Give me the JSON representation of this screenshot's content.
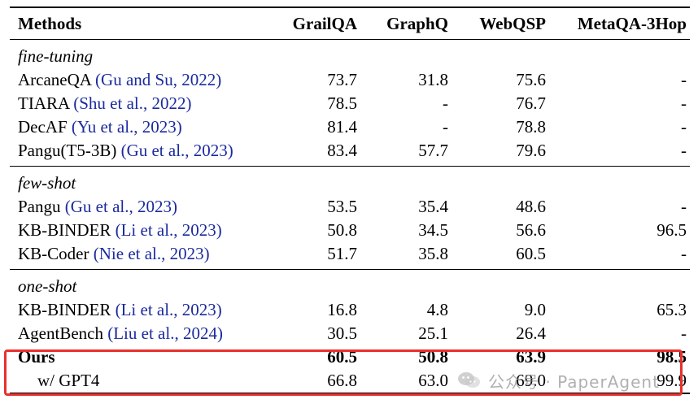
{
  "header": {
    "methods": "Methods",
    "grailqa": "GrailQA",
    "graphq": "GraphQ",
    "webqsp": "WebQSP",
    "metaqa": "MetaQA-3Hop"
  },
  "sections": [
    {
      "label": "fine-tuning",
      "rows": [
        {
          "name": "ArcaneQA",
          "cite": "(Gu and Su, 2022)",
          "grailqa": "73.7",
          "graphq": "31.8",
          "webqsp": "75.6",
          "metaqa": "-"
        },
        {
          "name": "TIARA",
          "cite": "(Shu et al., 2022)",
          "grailqa": "78.5",
          "graphq": "-",
          "webqsp": "76.7",
          "metaqa": "-"
        },
        {
          "name": "DecAF",
          "cite": "(Yu et al., 2023)",
          "grailqa": "81.4",
          "graphq": "-",
          "webqsp": "78.8",
          "metaqa": "-"
        },
        {
          "name": "Pangu(T5-3B)",
          "cite": "(Gu et al., 2023)",
          "grailqa": "83.4",
          "graphq": "57.7",
          "webqsp": "79.6",
          "metaqa": "-"
        }
      ]
    },
    {
      "label": "few-shot",
      "rows": [
        {
          "name": "Pangu",
          "cite": "(Gu et al., 2023)",
          "grailqa": "53.5",
          "graphq": "35.4",
          "webqsp": "48.6",
          "metaqa": "-"
        },
        {
          "name": "KB-BINDER",
          "cite": "(Li et al., 2023)",
          "grailqa": "50.8",
          "graphq": "34.5",
          "webqsp": "56.6",
          "metaqa": "96.5"
        },
        {
          "name": "KB-Coder",
          "cite": "(Nie et al., 2023)",
          "grailqa": "51.7",
          "graphq": "35.8",
          "webqsp": "60.5",
          "metaqa": "-"
        }
      ]
    },
    {
      "label": "one-shot",
      "rows": [
        {
          "name": "KB-BINDER",
          "cite": "(Li et al., 2023)",
          "grailqa": "16.8",
          "graphq": "4.8",
          "webqsp": "9.0",
          "metaqa": "65.3"
        },
        {
          "name": "AgentBench",
          "cite": "(Liu et al., 2024)",
          "grailqa": "30.5",
          "graphq": "25.1",
          "webqsp": "26.4",
          "metaqa": "-"
        }
      ]
    }
  ],
  "ours": {
    "name": "Ours",
    "grailqa": "60.5",
    "graphq": "50.8",
    "webqsp": "63.9",
    "metaqa": "98.5"
  },
  "ours_gpt4": {
    "name": "w/ GPT4",
    "grailqa": "66.8",
    "graphq": "63.0",
    "webqsp": "69.0",
    "metaqa": "99.9"
  },
  "watermark": {
    "text": "公众号 · PaperAgent",
    "icon": "wechat-icon"
  },
  "colors": {
    "citation": "#1a2a9e",
    "highlight_border": "#e8302c"
  }
}
